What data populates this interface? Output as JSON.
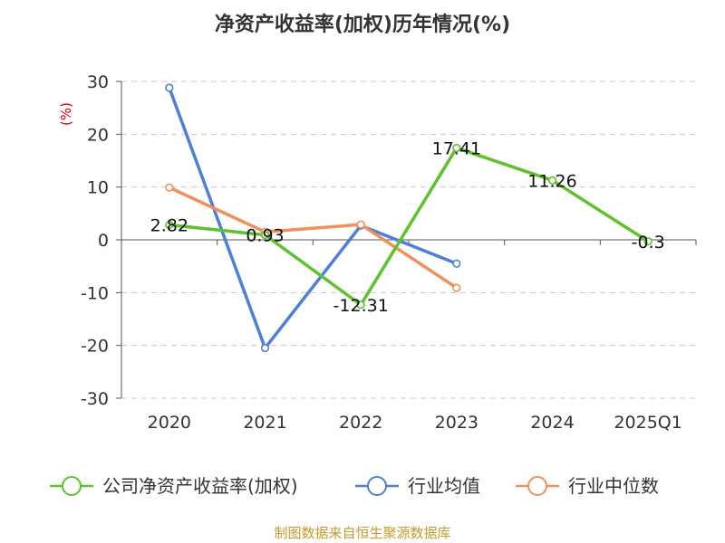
{
  "chart_data": {
    "type": "line",
    "title": "净资产收益率(加权)历年情况(%)",
    "ylabel": "(%)",
    "xlabel": "",
    "categories": [
      "2020",
      "2021",
      "2022",
      "2023",
      "2024",
      "2025Q1"
    ],
    "ylim": [
      -30,
      30
    ],
    "yticks": [
      30,
      20,
      10,
      0,
      -10,
      -20,
      -30
    ],
    "grid": true,
    "legend_position": "bottom",
    "series": [
      {
        "name": "公司净资产收益率(加权)",
        "color": "#5ec12e",
        "values": [
          2.82,
          0.93,
          -12.31,
          17.41,
          11.26,
          -0.3
        ],
        "labels": [
          "2.82",
          "0.93",
          "-12.31",
          "17.41",
          "11.26",
          "-0.3"
        ]
      },
      {
        "name": "行业均值",
        "color": "#4e7fd8",
        "values": [
          28.8,
          -20.5,
          2.7,
          -4.5,
          null,
          null
        ]
      },
      {
        "name": "行业中位数",
        "color": "#f0905a",
        "values": [
          9.9,
          1.5,
          2.9,
          -9.1,
          null,
          null
        ]
      }
    ]
  },
  "source": "制图数据来自恒生聚源数据库"
}
